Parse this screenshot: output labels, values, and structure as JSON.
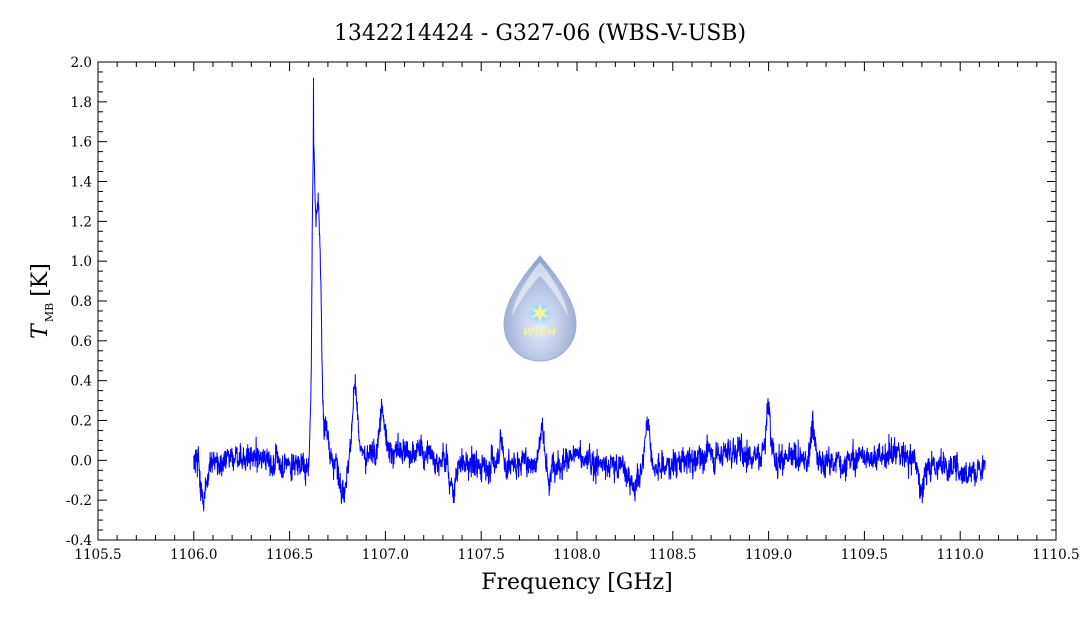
{
  "chart_data": {
    "type": "line",
    "title": "1342214424 - G327-06 (WBS-V-USB)",
    "xlabel": "Frequency [GHz]",
    "ylabel_main": "T",
    "ylabel_sub": "MB",
    "ylabel_unit": "[K]",
    "xlim": [
      1105.5,
      1110.5
    ],
    "ylim": [
      -0.4,
      2.0
    ],
    "x_ticks": [
      "1105.5",
      "1106.0",
      "1106.5",
      "1107.0",
      "1107.5",
      "1108.0",
      "1108.5",
      "1109.0",
      "1109.5",
      "1110.0",
      "1110.5"
    ],
    "y_ticks": [
      "-0.4",
      "-0.2",
      "0.0",
      "0.2",
      "0.4",
      "0.6",
      "0.8",
      "1.0",
      "1.2",
      "1.4",
      "1.6",
      "1.8",
      "2.0"
    ],
    "grid": false,
    "series": [
      {
        "color": "#0000ff",
        "x_range": [
          1106.0,
          1110.13
        ],
        "noise_rms": 0.07,
        "peaks": [
          {
            "x": 1106.625,
            "y": 1.92
          },
          {
            "x": 1106.645,
            "y": 1.29
          },
          {
            "x": 1106.66,
            "y": 1.05
          },
          {
            "x": 1106.69,
            "y": 0.25
          },
          {
            "x": 1106.84,
            "y": 0.45
          },
          {
            "x": 1106.98,
            "y": 0.28
          },
          {
            "x": 1107.6,
            "y": 0.17
          },
          {
            "x": 1107.82,
            "y": 0.23
          },
          {
            "x": 1108.37,
            "y": 0.3
          },
          {
            "x": 1109.0,
            "y": 0.3
          },
          {
            "x": 1109.23,
            "y": 0.25
          }
        ],
        "dips": [
          {
            "x": 1106.05,
            "y": -0.28
          },
          {
            "x": 1106.78,
            "y": -0.18
          },
          {
            "x": 1107.35,
            "y": -0.21
          },
          {
            "x": 1107.85,
            "y": -0.18
          },
          {
            "x": 1108.3,
            "y": -0.17
          },
          {
            "x": 1109.8,
            "y": -0.25
          }
        ]
      }
    ]
  },
  "logo": {
    "text": "WISH",
    "body_color": "#a8b8dc",
    "star_color": "#f6f08a"
  }
}
